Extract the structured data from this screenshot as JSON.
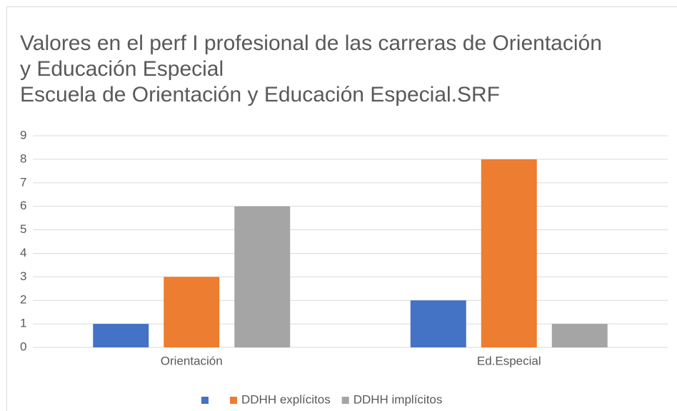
{
  "chart_data": {
    "type": "bar",
    "title": [
      "Valores en el perf I profesional de las carreras de Orientación",
      "y Educación Especial"
    ],
    "subtitle": "Escuela de Orientación y Educación Especial.SRF",
    "categories": [
      "Orientación",
      "Ed.Especial"
    ],
    "series": [
      {
        "name": null,
        "color": "#4472c4",
        "values": [
          1,
          2
        ]
      },
      {
        "name": "DDHH explícitos",
        "color": "#ed7d31",
        "values": [
          3,
          8
        ]
      },
      {
        "name": "DDHH implícitos",
        "color": "#a5a5a5",
        "values": [
          6,
          1
        ]
      }
    ],
    "ylim": [
      0,
      9
    ],
    "yticks": [
      0,
      1,
      2,
      3,
      4,
      5,
      6,
      7,
      8,
      9
    ],
    "grid": true,
    "legend": "bottom"
  }
}
